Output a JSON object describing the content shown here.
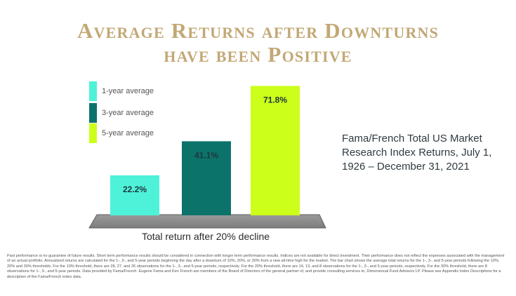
{
  "title": {
    "line1": "Average Returns after Downturns",
    "line2": "have been Positive",
    "color": "#c2a875"
  },
  "chart_data": {
    "type": "bar",
    "categories": [
      "1-year average",
      "3-year average",
      "5-year average"
    ],
    "values": [
      22.2,
      41.1,
      71.8
    ],
    "value_labels": [
      "22.2%",
      "41.1%",
      "71.8%"
    ],
    "colors": [
      "#4ef2d9",
      "#0c736b",
      "#ccff1a"
    ],
    "xlabel": "Total return after 20% decline",
    "ylim": [
      0,
      75
    ],
    "grid": false,
    "legend_position": "top-left"
  },
  "source_note": "Fama/French Total US Market Research Index Returns, July 1, 1926 – December 31, 2021",
  "disclaimer": "Past performance is no guarantee of future results. Short term performance results should be considered in connection with longer term performance results. Indices are not available for direct investment. Their performance does not reflect the expenses associated with the management of an actual portfolio. Annualized returns are calculated for the 1-, 3-, and 5-year periods beginning the day after a downturn of 10%, 20%, or 30% from a new all-time high for the market. The bar chart shows the average total returns for the 1-, 3-, and 5-year periods following the 10%, 20% and 30% thresholds. For the 10% threshold, there are 28, 27, and 26 observations for the 1-, 3-, and 5-year periods, respectively. For the 20% threshold, there are 14, 13, and 8 observations for the 1-, 3-, and 5-year periods, respectively. For the 30% threshold, there are 8 observations for 1-, 3-, and 5-year periods. Data provided by Fama/French. Eugene Fama and Ken French are members of the Board of Directors of the general partner of, and provide consulting services to, Dimensional Fund Advisors LP. Please see Appendix Index Descriptions for a description of the Fama/French index data."
}
